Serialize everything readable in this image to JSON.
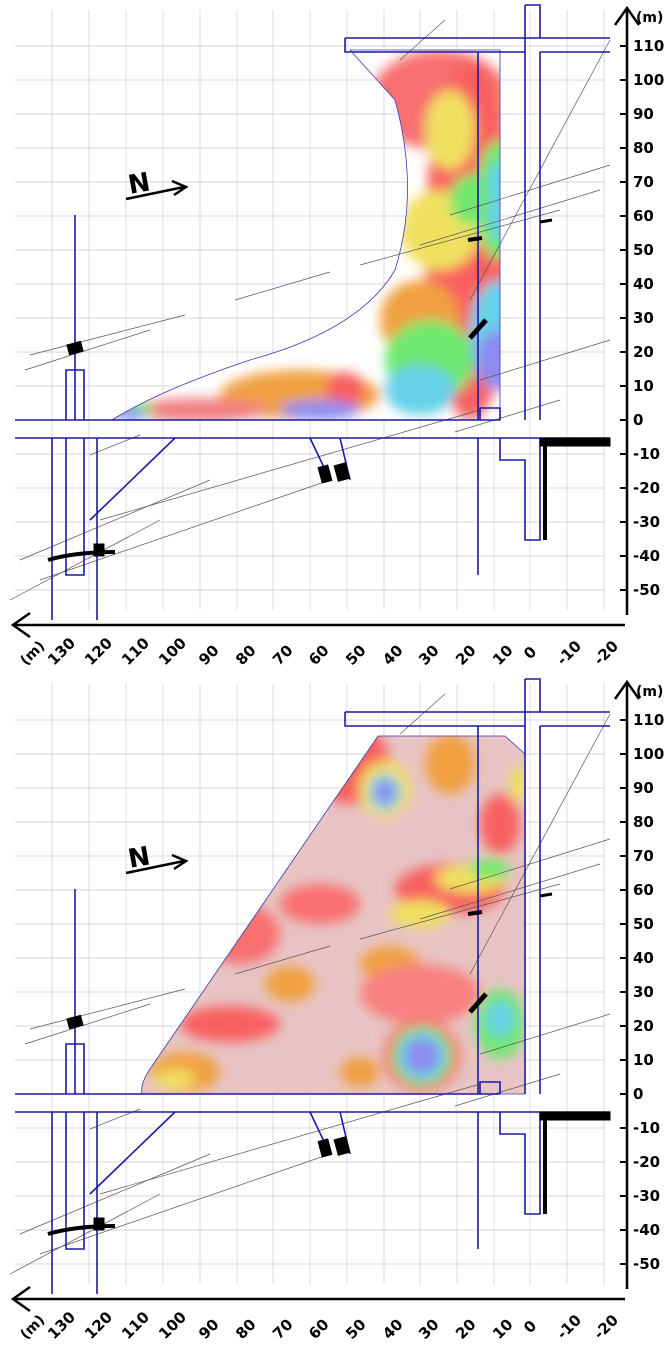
{
  "panels": [
    {
      "id": "top",
      "north_label": "N",
      "y_unit": "(m)",
      "x_unit": "(m)",
      "y_ticks": [
        "110",
        "100",
        "90",
        "80",
        "70",
        "60",
        "50",
        "40",
        "30",
        "20",
        "10",
        "0",
        "-10",
        "-20",
        "-30",
        "-40",
        "-50"
      ],
      "x_ticks": [
        "130",
        "120",
        "110",
        "100",
        "90",
        "80",
        "70",
        "60",
        "50",
        "40",
        "30",
        "20",
        "10",
        "0",
        "-10",
        "-20"
      ]
    },
    {
      "id": "bottom",
      "north_label": "N",
      "y_unit": "(m)",
      "x_unit": "(m)",
      "y_ticks": [
        "110",
        "100",
        "90",
        "80",
        "70",
        "60",
        "50",
        "40",
        "30",
        "20",
        "10",
        "0",
        "-10",
        "-20",
        "-30",
        "-40",
        "-50"
      ],
      "x_ticks": [
        "130",
        "120",
        "110",
        "100",
        "90",
        "80",
        "70",
        "60",
        "50",
        "40",
        "30",
        "20",
        "10",
        "0",
        "-10",
        "-20"
      ]
    }
  ],
  "colors": {
    "tunnel": "#1a1aa8",
    "grid": "#c8c8dc",
    "axis": "#000000",
    "fracture": "#555555",
    "scale": [
      "#8c8cf0",
      "#66d0e8",
      "#70e870",
      "#f0f060",
      "#f8b040",
      "#f86060",
      "#e8c0c0",
      "#ffffff"
    ]
  }
}
